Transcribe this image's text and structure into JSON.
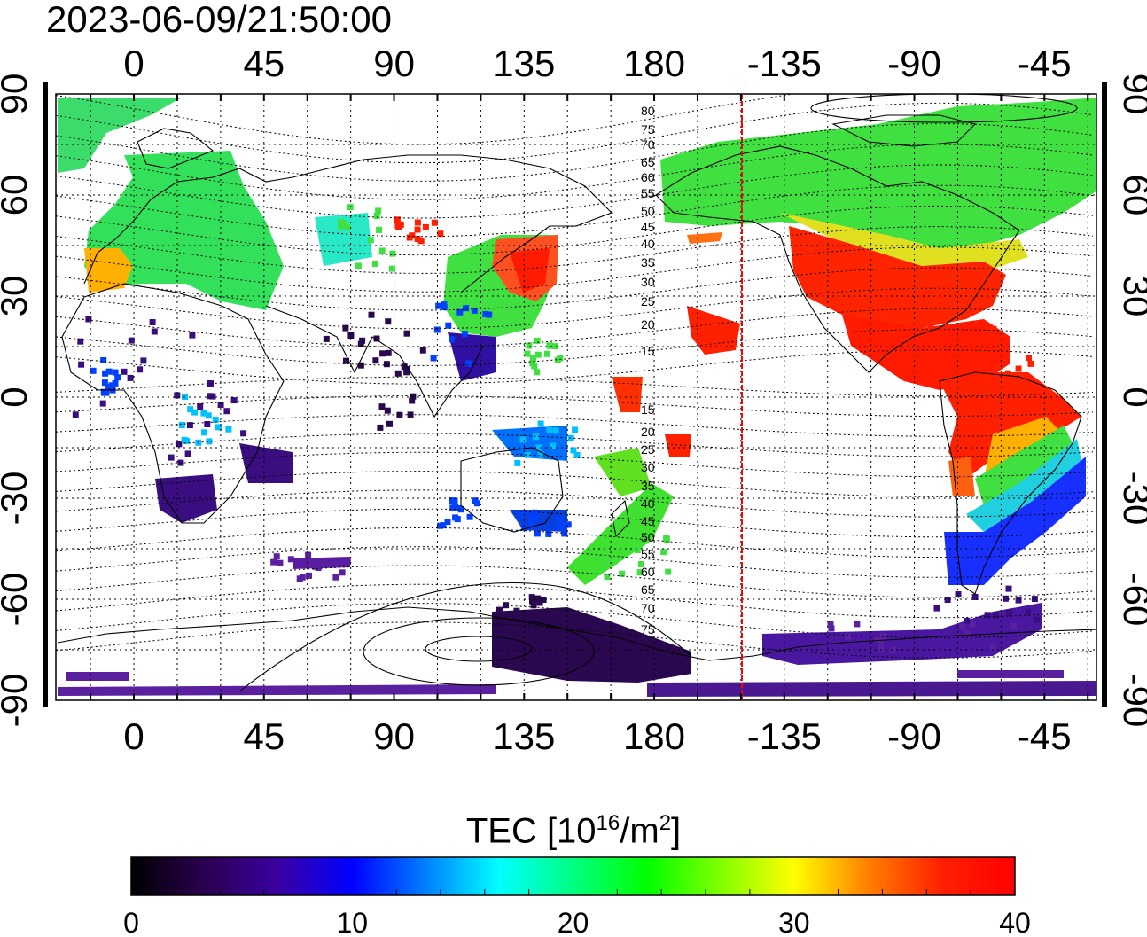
{
  "timestamp": "2023-06-09/21:50:00",
  "top_lon_labels": [
    "0",
    "45",
    "90",
    "135",
    "180",
    "-135",
    "-90",
    "-45"
  ],
  "bottom_lon_labels": [
    "0",
    "45",
    "90",
    "135",
    "180",
    "-135",
    "-90",
    "-45"
  ],
  "lat_labels": [
    "90",
    "60",
    "30",
    "0",
    "-30",
    "-60",
    "-90"
  ],
  "contour_labels": [
    "80",
    "75",
    "70",
    "65",
    "60",
    "55",
    "50",
    "45",
    "40",
    "35",
    "30",
    "25",
    "20",
    "15",
    "15",
    "20",
    "25",
    "30",
    "35",
    "40",
    "45",
    "50",
    "55",
    "60",
    "65",
    "70",
    "75"
  ],
  "colorbar": {
    "title_main": "TEC  [10",
    "title_sup1": "16",
    "title_mid": "/m",
    "title_sup2": "2",
    "title_end": "]",
    "ticks": [
      "0",
      "10",
      "20",
      "30",
      "40"
    ],
    "stops": [
      "#000000",
      "#2a0050",
      "#3a00a0",
      "#0000ff",
      "#0080ff",
      "#00ffff",
      "#00ff80",
      "#00ff00",
      "#80ff00",
      "#ffff00",
      "#ff8000",
      "#ff2000",
      "#ff0000"
    ]
  },
  "colors": {
    "terminator_line": "#ff0000"
  }
}
